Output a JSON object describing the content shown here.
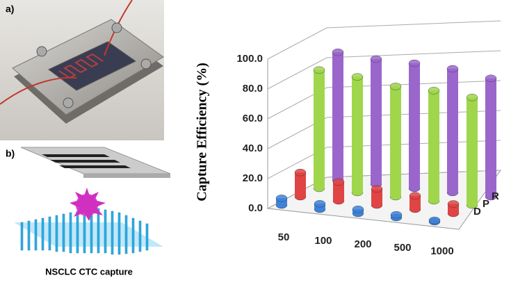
{
  "panel_a": {
    "label": "a)"
  },
  "panel_b": {
    "label": "b)",
    "caption": "NSCLC CTC capture"
  },
  "chart_data": {
    "type": "bar3d",
    "ylabel": "Capture Efficiency (%)",
    "categories": [
      "50",
      "100",
      "200",
      "500",
      "1000"
    ],
    "series": [
      {
        "name": null,
        "color": "#3f82d8",
        "values": [
          5,
          4,
          3,
          2,
          1
        ]
      },
      {
        "name": "D",
        "color": "#e04444",
        "values": [
          18,
          14,
          12,
          10,
          7
        ]
      },
      {
        "name": "P",
        "color": "#9fd64c",
        "values": [
          88,
          86,
          82,
          82,
          80
        ]
      },
      {
        "name": "R",
        "color": "#9a66cc",
        "values": [
          95,
          93,
          93,
          92,
          88
        ]
      }
    ],
    "ylim": [
      0,
      100
    ],
    "yticks": [
      {
        "value": 0,
        "label": "0.0"
      },
      {
        "value": 20,
        "label": "20.0"
      },
      {
        "value": 40,
        "label": "40.0"
      },
      {
        "value": 60,
        "label": "60.0"
      },
      {
        "value": 80,
        "label": "80.0"
      },
      {
        "value": 100,
        "label": "100.0"
      }
    ],
    "grid": true
  }
}
